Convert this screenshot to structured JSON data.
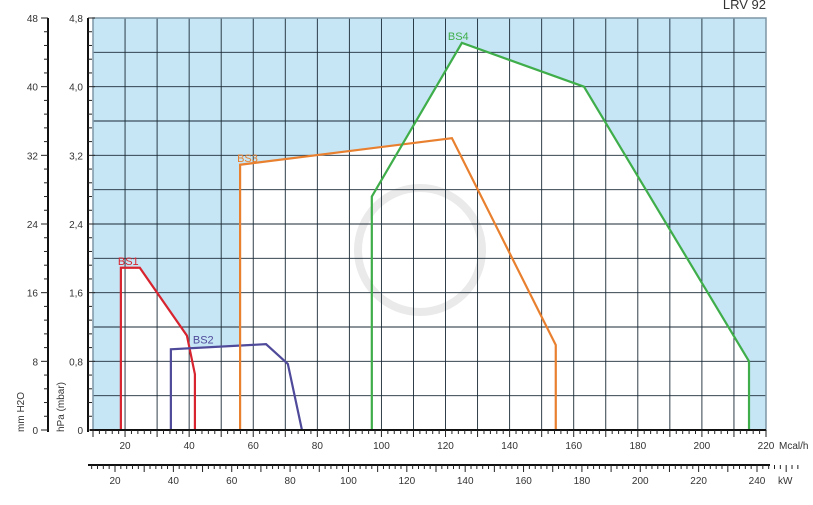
{
  "chart_data": {
    "type": "line",
    "title": "LRV 92",
    "x_axis_primary": {
      "label": "Mcal/h",
      "range": [
        10,
        220
      ],
      "ticks": [
        20,
        40,
        60,
        80,
        100,
        120,
        140,
        160,
        180,
        200,
        220
      ]
    },
    "x_axis_secondary": {
      "label": "kW",
      "ticks": [
        20,
        40,
        60,
        80,
        100,
        120,
        140,
        160,
        180,
        200,
        220,
        240
      ]
    },
    "y_axis_primary": {
      "label": "hPa (mbar)",
      "range": [
        0,
        4.8
      ],
      "ticks": [
        "0",
        "0,8",
        "1,6",
        "2,4",
        "3,2",
        "4,0",
        "4,8"
      ]
    },
    "y_axis_secondary": {
      "label": "mm H2O",
      "range": [
        0,
        48
      ],
      "ticks": [
        0,
        8,
        16,
        24,
        32,
        40,
        48
      ]
    },
    "grid": true,
    "colors": {
      "outside": "#c6e6f6",
      "inside": "#ffffff",
      "grid": "#1a2a36"
    },
    "series": [
      {
        "name": "BS1",
        "color": "#d7242f",
        "points": [
          [
            18.7,
            0
          ],
          [
            18.7,
            1.89
          ],
          [
            24.6,
            1.89
          ],
          [
            39.3,
            1.1
          ],
          [
            41.8,
            0.65
          ],
          [
            41.8,
            0
          ]
        ]
      },
      {
        "name": "BS2",
        "color": "#4f4a9a",
        "points": [
          [
            34.3,
            0
          ],
          [
            34.3,
            0.94
          ],
          [
            64,
            1.0
          ],
          [
            70.8,
            0.77
          ],
          [
            75.2,
            0
          ]
        ]
      },
      {
        "name": "BS3",
        "color": "#e8802f",
        "points": [
          [
            55.9,
            0
          ],
          [
            55.9,
            3.09
          ],
          [
            122,
            3.4
          ],
          [
            154.4,
            0.99
          ],
          [
            154.4,
            0
          ]
        ]
      },
      {
        "name": "BS4",
        "color": "#3fae4a",
        "points": [
          [
            97,
            0
          ],
          [
            97,
            2.72
          ],
          [
            125.1,
            4.51
          ],
          [
            163.2,
            4.0
          ],
          [
            214.7,
            0.8
          ],
          [
            214.7,
            0
          ]
        ]
      }
    ]
  }
}
